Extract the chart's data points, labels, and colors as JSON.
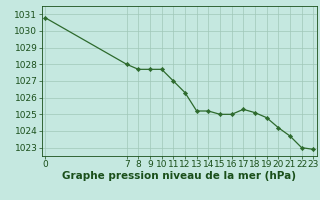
{
  "x": [
    0,
    7,
    8,
    9,
    10,
    11,
    12,
    13,
    14,
    15,
    16,
    17,
    18,
    19,
    20,
    21,
    22,
    23
  ],
  "y": [
    1030.8,
    1028.0,
    1027.7,
    1027.7,
    1027.7,
    1027.0,
    1026.3,
    1025.2,
    1025.2,
    1025.0,
    1025.0,
    1025.3,
    1025.1,
    1024.8,
    1024.2,
    1023.7,
    1023.0,
    1022.9
  ],
  "line_color": "#2d6a2d",
  "marker_color": "#2d6a2d",
  "bg_color": "#c5e8e0",
  "grid_color": "#a0c8b8",
  "xlabel": "Graphe pression niveau de la mer (hPa)",
  "ylim": [
    1022.5,
    1031.5
  ],
  "yticks": [
    1023,
    1024,
    1025,
    1026,
    1027,
    1028,
    1029,
    1030,
    1031
  ],
  "xticks": [
    0,
    7,
    8,
    9,
    10,
    11,
    12,
    13,
    14,
    15,
    16,
    17,
    18,
    19,
    20,
    21,
    22,
    23
  ],
  "xlim": [
    -0.3,
    23.3
  ],
  "tick_color": "#1a4f1a",
  "label_fontsize": 6.5,
  "xlabel_fontsize": 7.5
}
